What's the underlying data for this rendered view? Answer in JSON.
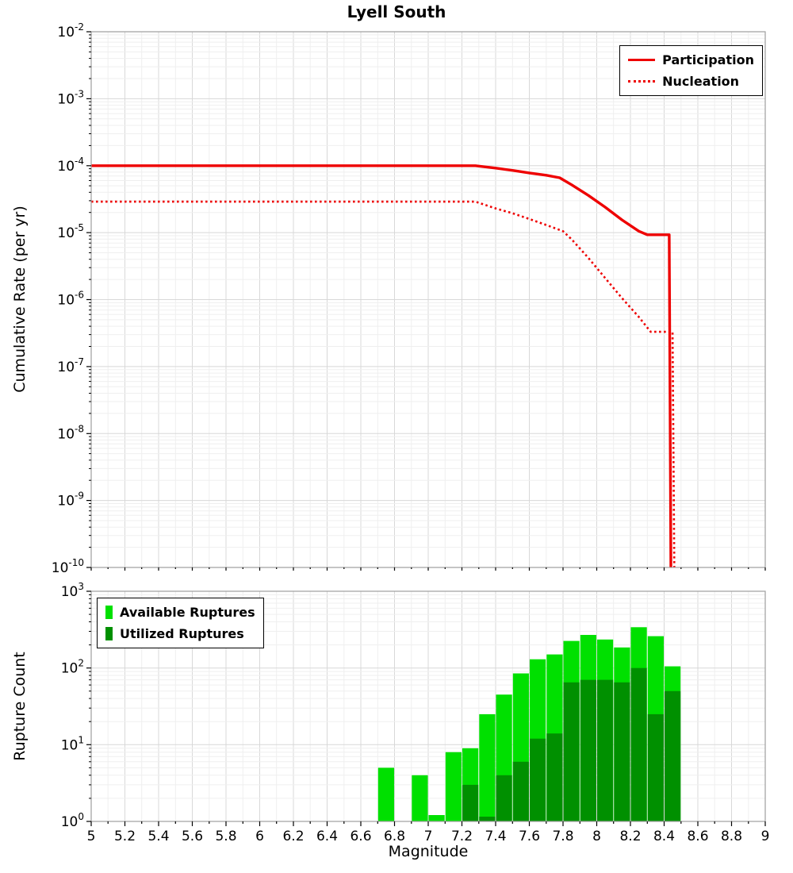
{
  "title": "Lyell South",
  "colors": {
    "line_red": "#ee0000",
    "available_green": "#00e000",
    "utilized_green": "#009000",
    "grid_major": "#d8d8d8",
    "grid_minor": "#efefef",
    "frame": "#9e9e9e",
    "plot_bg": "#ffffff",
    "text": "#000000"
  },
  "axes": {
    "xlabel": "Magnitude",
    "x_min": 5,
    "x_max": 9,
    "x_tick_step": 0.2,
    "x_tick_labels": [
      "5",
      "5.2",
      "5.4",
      "5.6",
      "5.8",
      "6",
      "6.2",
      "6.4",
      "6.6",
      "6.8",
      "7",
      "7.2",
      "7.4",
      "7.6",
      "7.8",
      "8",
      "8.2",
      "8.4",
      "8.6",
      "8.8",
      "9"
    ],
    "top_ylabel": "Cumulative Rate (per yr)",
    "top_y_exponents": [
      -2,
      -3,
      -4,
      -5,
      -6,
      -7,
      -8,
      -9,
      -10
    ],
    "bottom_ylabel": "Rupture Count",
    "bottom_y_exponents": [
      3,
      2,
      1,
      0
    ]
  },
  "chart_data": [
    {
      "type": "line",
      "title": "Lyell South",
      "ylabel": "Cumulative Rate (per yr)",
      "xlabel": "Magnitude",
      "y_scale": "log",
      "ylim": [
        1e-10,
        0.01
      ],
      "xlim": [
        5,
        9
      ],
      "grid": true,
      "legend_position": "top-right",
      "series": [
        {
          "name": "Participation",
          "style": "solid",
          "color": "#ee0000",
          "points": [
            [
              5.0,
              0.0001
            ],
            [
              7.28,
              0.0001
            ],
            [
              7.4,
              9.2e-05
            ],
            [
              7.5,
              8.5e-05
            ],
            [
              7.6,
              7.8e-05
            ],
            [
              7.7,
              7.2e-05
            ],
            [
              7.78,
              6.6e-05
            ],
            [
              7.85,
              5.2e-05
            ],
            [
              7.95,
              3.6e-05
            ],
            [
              8.05,
              2.4e-05
            ],
            [
              8.15,
              1.55e-05
            ],
            [
              8.25,
              1.05e-05
            ],
            [
              8.3,
              9.3e-06
            ],
            [
              8.43,
              9.3e-06
            ],
            [
              8.44,
              1e-10
            ]
          ]
        },
        {
          "name": "Nucleation",
          "style": "dotted",
          "color": "#ee0000",
          "points": [
            [
              5.0,
              2.9e-05
            ],
            [
              7.28,
              2.9e-05
            ],
            [
              7.4,
              2.3e-05
            ],
            [
              7.5,
              1.95e-05
            ],
            [
              7.6,
              1.6e-05
            ],
            [
              7.7,
              1.3e-05
            ],
            [
              7.8,
              1.05e-05
            ],
            [
              7.85,
              8e-06
            ],
            [
              7.95,
              4.2e-06
            ],
            [
              8.05,
              2.1e-06
            ],
            [
              8.15,
              1.05e-06
            ],
            [
              8.25,
              5.5e-07
            ],
            [
              8.32,
              3.3e-07
            ],
            [
              8.45,
              3.3e-07
            ],
            [
              8.46,
              1e-10
            ]
          ]
        }
      ]
    },
    {
      "type": "bar",
      "ylabel": "Rupture Count",
      "xlabel": "Magnitude",
      "y_scale": "log",
      "ylim": [
        1,
        1000
      ],
      "xlim": [
        5,
        9
      ],
      "bar_width": 0.095,
      "grid": true,
      "legend_position": "top-left",
      "categories": [
        6.75,
        6.95,
        7.05,
        7.15,
        7.25,
        7.35,
        7.45,
        7.55,
        7.65,
        7.75,
        7.85,
        7.95,
        8.05,
        8.15,
        8.25,
        8.35,
        8.45
      ],
      "series": [
        {
          "name": "Available Ruptures",
          "color": "#00e000",
          "values": [
            5,
            4,
            1,
            8,
            9,
            25,
            45,
            85,
            130,
            150,
            225,
            270,
            235,
            185,
            340,
            260,
            105
          ]
        },
        {
          "name": "Utilized Ruptures",
          "color": "#009000",
          "values": [
            0,
            0,
            0,
            0,
            3,
            1,
            4,
            6,
            12,
            14,
            65,
            70,
            70,
            65,
            100,
            25,
            50
          ]
        }
      ]
    }
  ]
}
